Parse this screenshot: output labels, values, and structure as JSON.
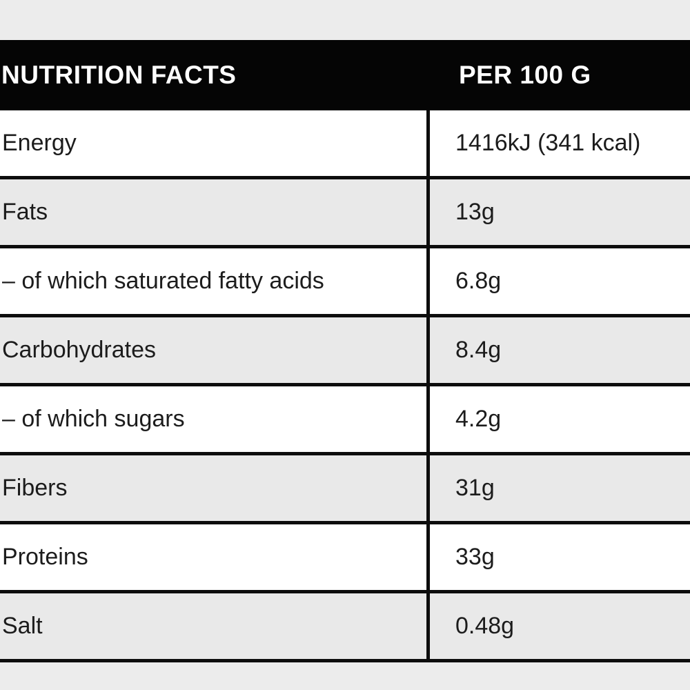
{
  "header": {
    "title": "NUTRITION FACTS",
    "column": "PER 100 G"
  },
  "rows": [
    {
      "label": "Energy",
      "value": "1416kJ (341 kcal)"
    },
    {
      "label": "Fats",
      "value": "13g"
    },
    {
      "label": "– of which saturated fatty acids",
      "value": "6.8g"
    },
    {
      "label": "Carbohydrates",
      "value": "8.4g"
    },
    {
      "label": "– of which sugars",
      "value": "4.2g"
    },
    {
      "label": "Fibers",
      "value": "31g"
    },
    {
      "label": "Proteins",
      "value": "33g"
    },
    {
      "label": "Salt",
      "value": "0.48g"
    }
  ],
  "colors": {
    "header_bg": "#050505",
    "header_text": "#ffffff",
    "row_bg": "#ffffff",
    "row_alt_bg": "#e9e9e9",
    "frame_bg": "#ececec",
    "border": "#0d0d0d",
    "text": "#1c1c1c"
  }
}
